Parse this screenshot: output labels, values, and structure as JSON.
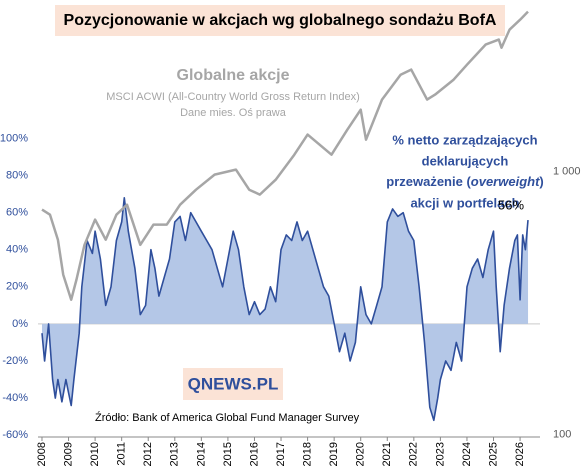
{
  "chart_data": {
    "type": "line",
    "title": "Pozycjonowanie w akcjach wg globalnego sondażu BofA",
    "gray_title": "Globalne akcje",
    "gray_subtitle": [
      "MSCI ACWI (All-Country World Gross Return Index)",
      "Dane mies. Oś prawa"
    ],
    "blue_annotation": [
      "% netto zarządzających",
      "deklarujących",
      [
        "przeważenie (",
        "overweight",
        ")"
      ],
      "akcji w portfelach"
    ],
    "end_label": "56%",
    "logo": "QNEWS.PL",
    "source": "Źródło: Bank of America Global Fund Manager Survey",
    "xlim": [
      2007.85,
      2026.75
    ],
    "xticks": [
      2008,
      2009,
      2010,
      2011,
      2012,
      2013,
      2014,
      2015,
      2016,
      2017,
      2018,
      2019,
      2020,
      2021,
      2022,
      2023,
      2024,
      2025,
      2026
    ],
    "ylim": [
      -61,
      172
    ],
    "yticks": [
      {
        "value": -60,
        "label": "-60%"
      },
      {
        "value": -40,
        "label": "-40%"
      },
      {
        "value": -20,
        "label": "-20%"
      },
      {
        "value": 0,
        "label": "0%"
      },
      {
        "value": 20,
        "label": "20%"
      },
      {
        "value": 40,
        "label": "40%"
      },
      {
        "value": 60,
        "label": "60%"
      },
      {
        "value": 80,
        "label": "80%"
      },
      {
        "value": 100,
        "label": "100%"
      }
    ],
    "y2lim": [
      98,
      4300
    ],
    "y2log": true,
    "y2ticks": [
      100,
      {
        "value": 1000,
        "label": "1 000"
      }
    ],
    "series": [
      {
        "name": "% netto zarządzających",
        "color": "#2f4f9c",
        "fill": "#b4c7e7",
        "x": [
          2008.0,
          2008.1,
          2008.25,
          2008.4,
          2008.5,
          2008.6,
          2008.75,
          2008.9,
          2009.0,
          2009.1,
          2009.2,
          2009.4,
          2009.5,
          2009.7,
          2009.9,
          2010.0,
          2010.2,
          2010.4,
          2010.6,
          2010.8,
          2011.0,
          2011.1,
          2011.25,
          2011.5,
          2011.7,
          2011.9,
          2012.1,
          2012.25,
          2012.4,
          2012.6,
          2012.8,
          2013.0,
          2013.2,
          2013.4,
          2013.6,
          2013.8,
          2014.0,
          2014.2,
          2014.4,
          2014.6,
          2014.8,
          2015.0,
          2015.2,
          2015.4,
          2015.6,
          2015.8,
          2016.0,
          2016.2,
          2016.4,
          2016.6,
          2016.8,
          2017.0,
          2017.2,
          2017.4,
          2017.6,
          2017.8,
          2018.0,
          2018.2,
          2018.4,
          2018.6,
          2018.8,
          2019.0,
          2019.2,
          2019.4,
          2019.6,
          2019.8,
          2020.0,
          2020.2,
          2020.4,
          2020.6,
          2020.8,
          2021.0,
          2021.2,
          2021.4,
          2021.6,
          2021.8,
          2022.0,
          2022.2,
          2022.4,
          2022.6,
          2022.75,
          2022.9,
          2023.0,
          2023.2,
          2023.4,
          2023.6,
          2023.8,
          2024.0,
          2024.2,
          2024.4,
          2024.6,
          2024.8,
          2025.0,
          2025.1,
          2025.25,
          2025.4,
          2025.6,
          2025.8,
          2025.9,
          2026.0,
          2026.1,
          2026.2,
          2026.3
        ],
        "values": [
          -5,
          -20,
          0,
          -30,
          -40,
          -30,
          -42,
          -30,
          -37,
          -44,
          -30,
          -5,
          20,
          45,
          38,
          50,
          35,
          10,
          20,
          45,
          55,
          68,
          50,
          30,
          5,
          10,
          40,
          30,
          15,
          25,
          35,
          55,
          58,
          45,
          60,
          55,
          50,
          45,
          40,
          30,
          20,
          35,
          50,
          40,
          20,
          5,
          12,
          5,
          8,
          20,
          12,
          40,
          48,
          45,
          55,
          45,
          50,
          40,
          30,
          20,
          15,
          0,
          -15,
          -5,
          -20,
          -10,
          20,
          5,
          0,
          10,
          20,
          55,
          62,
          58,
          60,
          50,
          45,
          20,
          -10,
          -45,
          -52,
          -40,
          -30,
          -20,
          -25,
          -10,
          -20,
          20,
          30,
          35,
          25,
          40,
          50,
          20,
          -15,
          10,
          30,
          45,
          48,
          13,
          48,
          40,
          56
        ]
      },
      {
        "name": "MSCI ACWI",
        "color": "#a6a6a6",
        "axis": "y2",
        "x": [
          2008.0,
          2008.3,
          2008.6,
          2008.8,
          2009.1,
          2009.3,
          2009.6,
          2010.0,
          2010.4,
          2010.8,
          2011.2,
          2011.7,
          2012.2,
          2012.7,
          2013.2,
          2013.8,
          2014.5,
          2015.3,
          2015.8,
          2016.2,
          2016.8,
          2017.5,
          2018.0,
          2018.9,
          2019.5,
          2020.0,
          2020.2,
          2020.8,
          2021.5,
          2021.9,
          2022.5,
          2022.8,
          2023.5,
          2024.0,
          2024.7,
          2025.2,
          2025.3,
          2025.6,
          2026.0,
          2026.3
        ],
        "values": [
          717,
          686,
          551,
          406,
          326,
          389,
          527,
          657,
          551,
          686,
          749,
          527,
          629,
          629,
          749,
          854,
          974,
          1018,
          854,
          818,
          932,
          1160,
          1383,
          1160,
          1445,
          1720,
          1323,
          1878,
          2335,
          2442,
          1878,
          1963,
          2238,
          2550,
          3040,
          3177,
          2958,
          3465,
          3780,
          4060
        ]
      }
    ]
  }
}
